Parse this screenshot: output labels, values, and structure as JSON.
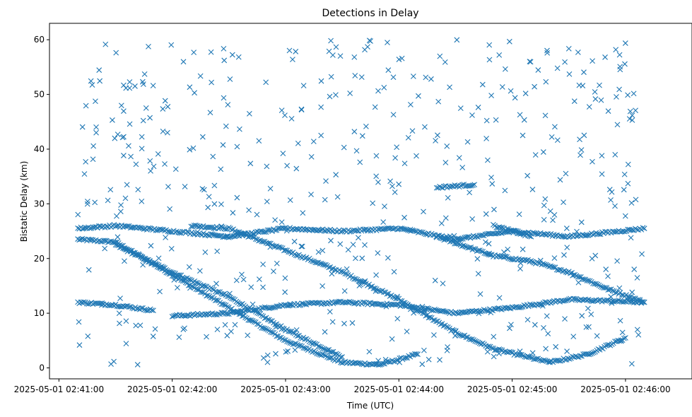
{
  "chart_data": {
    "type": "scatter",
    "title": "Detections in Delay",
    "xlabel": "Time (UTC)",
    "ylabel": "Bistatic Delay (km)",
    "marker": "x",
    "color": "#1f77b4",
    "grid": false,
    "legend": "none",
    "x_range": [
      "2025-05-01 02:41:10",
      "2025-05-01 02:46:10"
    ],
    "xlim": [
      "2025-05-01 02:40:55",
      "2025-05-01 02:46:15"
    ],
    "ylim": [
      -2,
      63
    ],
    "x_ticks": [
      "2025-05-01 02:41:00",
      "2025-05-01 02:42:00",
      "2025-05-01 02:43:00",
      "2025-05-01 02:44:00",
      "2025-05-01 02:45:00",
      "2025-05-01 02:46:00"
    ],
    "y_ticks": [
      "0",
      "10",
      "20",
      "30",
      "40",
      "50",
      "60"
    ],
    "tracks": [
      {
        "points": [
          [
            "2025-05-01 02:41:10",
            23.5
          ],
          [
            "2025-05-01 02:41:30",
            23.0
          ],
          [
            "2025-05-01 02:42:00",
            17.0
          ],
          [
            "2025-05-01 02:42:30",
            11.0
          ],
          [
            "2025-05-01 02:43:00",
            5.0
          ],
          [
            "2025-05-01 02:43:30",
            1.0
          ],
          [
            "2025-05-01 02:43:50",
            0.6
          ],
          [
            "2025-05-01 02:44:10",
            2.5
          ]
        ]
      },
      {
        "points": [
          [
            "2025-05-01 02:41:30",
            22.5
          ],
          [
            "2025-05-01 02:42:00",
            17.5
          ],
          [
            "2025-05-01 02:42:30",
            13.0
          ],
          [
            "2025-05-01 02:43:00",
            7.0
          ],
          [
            "2025-05-01 02:43:30",
            2.0
          ]
        ]
      },
      {
        "points": [
          [
            "2025-05-01 02:42:10",
            26.0
          ],
          [
            "2025-05-01 02:42:30",
            25.5
          ],
          [
            "2025-05-01 02:43:00",
            21.5
          ],
          [
            "2025-05-01 02:43:30",
            17.5
          ],
          [
            "2025-05-01 02:44:00",
            12.5
          ],
          [
            "2025-05-01 02:44:30",
            6.5
          ],
          [
            "2025-05-01 02:44:50",
            3.5
          ],
          [
            "2025-05-01 02:45:20",
            1.0
          ]
        ]
      },
      {
        "points": [
          [
            "2025-05-01 02:44:20",
            24.0
          ],
          [
            "2025-05-01 02:44:50",
            20.5
          ],
          [
            "2025-05-01 02:45:10",
            19.5
          ],
          [
            "2025-05-01 02:45:30",
            17.5
          ],
          [
            "2025-05-01 02:45:50",
            14.5
          ],
          [
            "2025-05-01 02:46:10",
            12.0
          ]
        ]
      },
      {
        "points": [
          [
            "2025-05-01 02:41:10",
            12.0
          ],
          [
            "2025-05-01 02:41:30",
            11.5
          ],
          [
            "2025-05-01 02:41:50",
            10.5
          ]
        ]
      },
      {
        "points": [
          [
            "2025-05-01 02:42:00",
            9.5
          ],
          [
            "2025-05-01 02:42:30",
            10.0
          ],
          [
            "2025-05-01 02:43:00",
            11.5
          ],
          [
            "2025-05-01 02:43:30",
            12.0
          ],
          [
            "2025-05-01 02:44:00",
            11.5
          ],
          [
            "2025-05-01 02:44:30",
            10.0
          ],
          [
            "2025-05-01 02:45:00",
            11.0
          ],
          [
            "2025-05-01 02:45:30",
            12.5
          ],
          [
            "2025-05-01 02:46:10",
            12.0
          ]
        ]
      },
      {
        "points": [
          [
            "2025-05-01 02:45:20",
            1.0
          ],
          [
            "2025-05-01 02:45:40",
            2.5
          ],
          [
            "2025-05-01 02:46:00",
            5.5
          ]
        ]
      },
      {
        "points": [
          [
            "2025-05-01 02:41:10",
            25.5
          ],
          [
            "2025-05-01 02:41:30",
            26.0
          ],
          [
            "2025-05-01 02:42:00",
            25.0
          ],
          [
            "2025-05-01 02:42:30",
            24.0
          ],
          [
            "2025-05-01 02:43:00",
            25.5
          ],
          [
            "2025-05-01 02:43:30",
            25.0
          ],
          [
            "2025-05-01 02:44:00",
            25.5
          ],
          [
            "2025-05-01 02:44:30",
            23.5
          ],
          [
            "2025-05-01 02:45:00",
            25.0
          ],
          [
            "2025-05-01 02:45:30",
            24.0
          ],
          [
            "2025-05-01 02:46:10",
            25.5
          ]
        ]
      },
      {
        "points": [
          [
            "2025-05-01 02:44:20",
            33.0
          ],
          [
            "2025-05-01 02:44:40",
            33.5
          ]
        ]
      },
      {
        "points": [
          [
            "2025-05-01 02:44:50",
            26.0
          ],
          [
            "2025-05-01 02:45:10",
            24.0
          ]
        ]
      }
    ],
    "clutter": {
      "x_range": [
        "2025-05-01 02:41:10",
        "2025-05-01 02:46:10"
      ],
      "y_range": [
        0.5,
        60
      ],
      "count": 520
    }
  }
}
